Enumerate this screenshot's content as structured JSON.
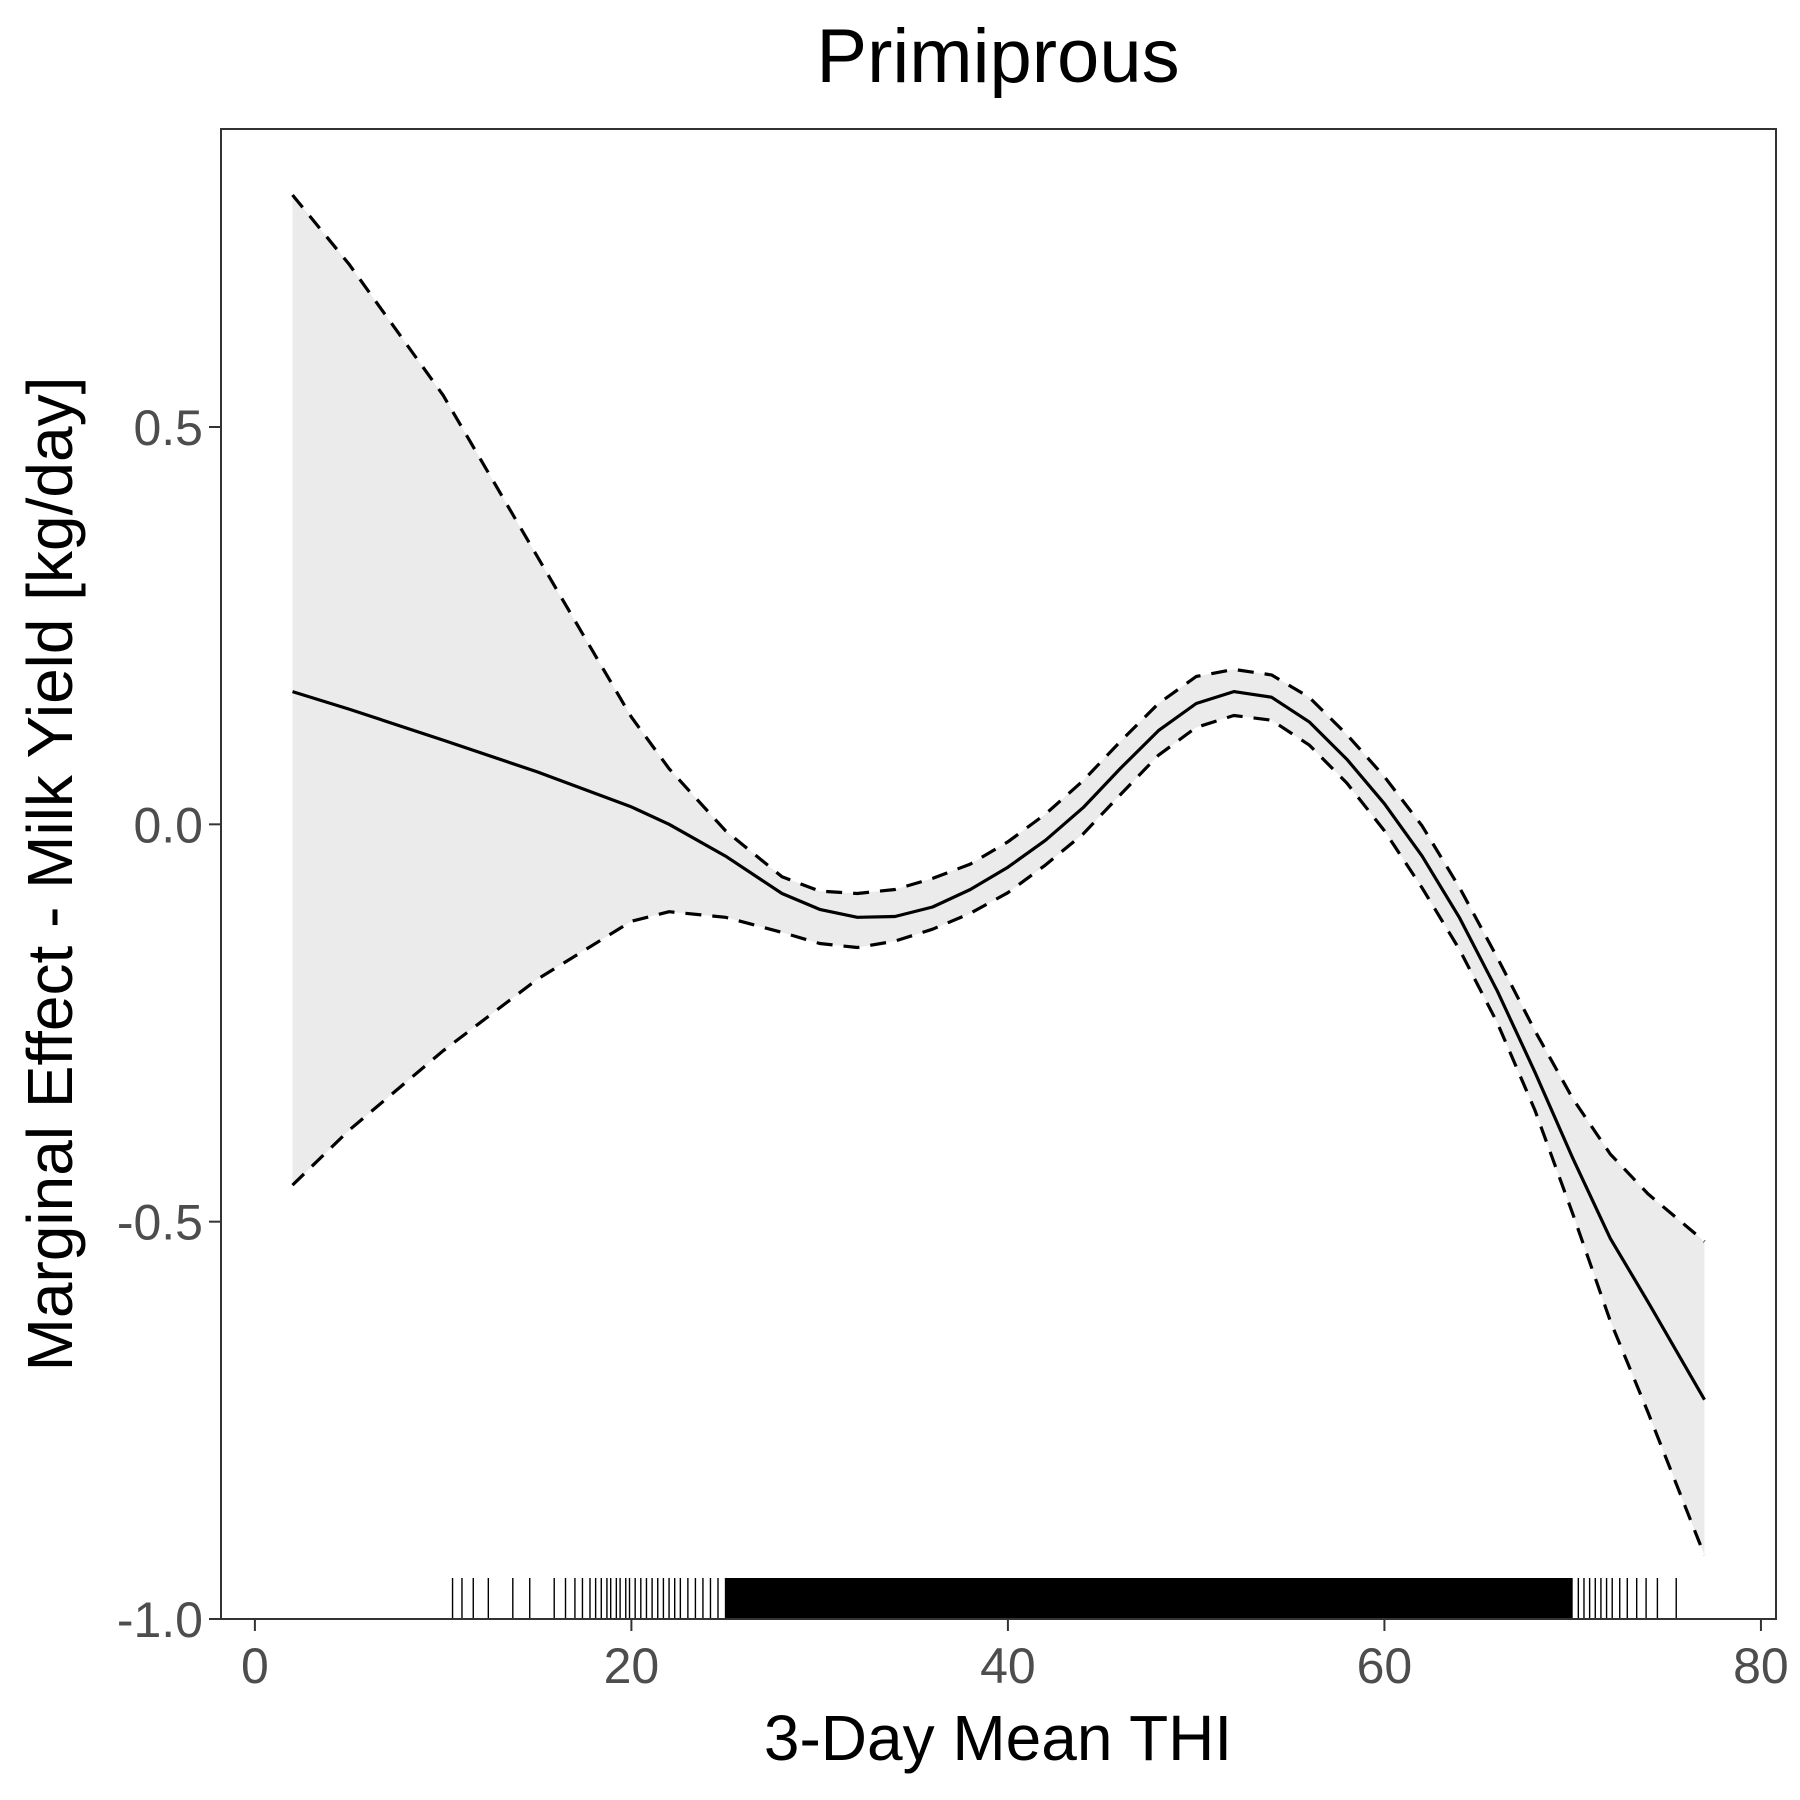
{
  "chart_data": {
    "type": "line",
    "title": "Primiprous",
    "xlabel": "3-Day Mean THI",
    "ylabel": "Marginal Effect - Milk Yield [kg/day]",
    "xlim": [
      -1.8,
      80.8
    ],
    "ylim": [
      -1.0,
      0.875
    ],
    "x_ticks": [
      0,
      20,
      40,
      60,
      80
    ],
    "x_tick_labels": [
      "0",
      "20",
      "40",
      "60",
      "80"
    ],
    "y_ticks": [
      -1.0,
      -0.5,
      0.0,
      0.5
    ],
    "y_tick_labels": [
      "-1.0",
      "-0.5",
      "0.0",
      "0.5"
    ],
    "grid": false,
    "legend": "none",
    "colors": {
      "line": "#000000",
      "band": "#ebebeb",
      "frame": "#333333",
      "tick_text": "#4d4d4d"
    },
    "series": [
      {
        "role": "estimate",
        "style": "solid",
        "x": [
          2,
          5,
          10,
          15,
          20,
          22,
          25,
          28,
          30,
          32,
          34,
          36,
          38,
          40,
          42,
          44,
          46,
          48,
          50,
          52,
          54,
          56,
          58,
          60,
          62,
          64,
          66,
          68,
          70,
          72,
          74,
          77
        ],
        "y": [
          0.167,
          0.145,
          0.106,
          0.066,
          0.022,
          0.0,
          -0.04,
          -0.087,
          -0.107,
          -0.117,
          -0.116,
          -0.104,
          -0.082,
          -0.054,
          -0.02,
          0.021,
          0.071,
          0.118,
          0.152,
          0.167,
          0.16,
          0.129,
          0.082,
          0.026,
          -0.04,
          -0.118,
          -0.21,
          -0.312,
          -0.42,
          -0.521,
          -0.601,
          -0.724
        ]
      },
      {
        "role": "upper",
        "style": "dashed",
        "x": [
          2,
          5,
          10,
          15,
          20,
          22,
          25,
          28,
          30,
          32,
          34,
          36,
          38,
          40,
          42,
          44,
          46,
          48,
          50,
          52,
          54,
          56,
          58,
          60,
          62,
          64,
          66,
          68,
          70,
          72,
          74,
          77
        ],
        "y": [
          0.792,
          0.705,
          0.54,
          0.337,
          0.135,
          0.07,
          -0.008,
          -0.066,
          -0.084,
          -0.087,
          -0.082,
          -0.068,
          -0.05,
          -0.022,
          0.013,
          0.055,
          0.105,
          0.152,
          0.186,
          0.195,
          0.188,
          0.16,
          0.113,
          0.06,
          -0.002,
          -0.08,
          -0.168,
          -0.26,
          -0.345,
          -0.415,
          -0.465,
          -0.525
        ]
      },
      {
        "role": "lower",
        "style": "dashed",
        "x": [
          2,
          5,
          10,
          15,
          20,
          22,
          25,
          28,
          30,
          32,
          34,
          36,
          38,
          40,
          42,
          44,
          46,
          48,
          50,
          52,
          54,
          56,
          58,
          60,
          62,
          64,
          66,
          68,
          70,
          72,
          74,
          77
        ],
        "y": [
          -0.454,
          -0.385,
          -0.285,
          -0.195,
          -0.122,
          -0.11,
          -0.117,
          -0.136,
          -0.15,
          -0.155,
          -0.147,
          -0.132,
          -0.112,
          -0.086,
          -0.051,
          -0.012,
          0.038,
          0.087,
          0.122,
          0.137,
          0.131,
          0.1,
          0.052,
          -0.008,
          -0.08,
          -0.158,
          -0.25,
          -0.36,
          -0.49,
          -0.625,
          -0.74,
          -0.92
        ]
      }
    ],
    "rug_x": [
      10.5,
      11.0,
      11.6,
      12.4,
      13.7,
      14.6,
      15.9,
      16.5,
      17.0,
      17.4,
      17.8,
      18.1,
      18.4,
      18.7,
      18.9,
      19.2,
      19.4,
      19.7,
      19.9,
      20.2,
      20.5,
      20.8,
      21.1,
      21.4,
      21.7,
      22.0,
      22.3,
      22.6,
      23.0,
      23.4,
      23.8,
      24.2,
      24.6,
      25.0,
      70.3,
      70.6,
      70.9,
      71.2,
      71.5,
      71.8,
      72.1,
      72.5,
      72.9,
      73.4,
      73.9,
      74.5,
      75.5
    ],
    "rug_dense_range": [
      25.0,
      70.0
    ]
  }
}
